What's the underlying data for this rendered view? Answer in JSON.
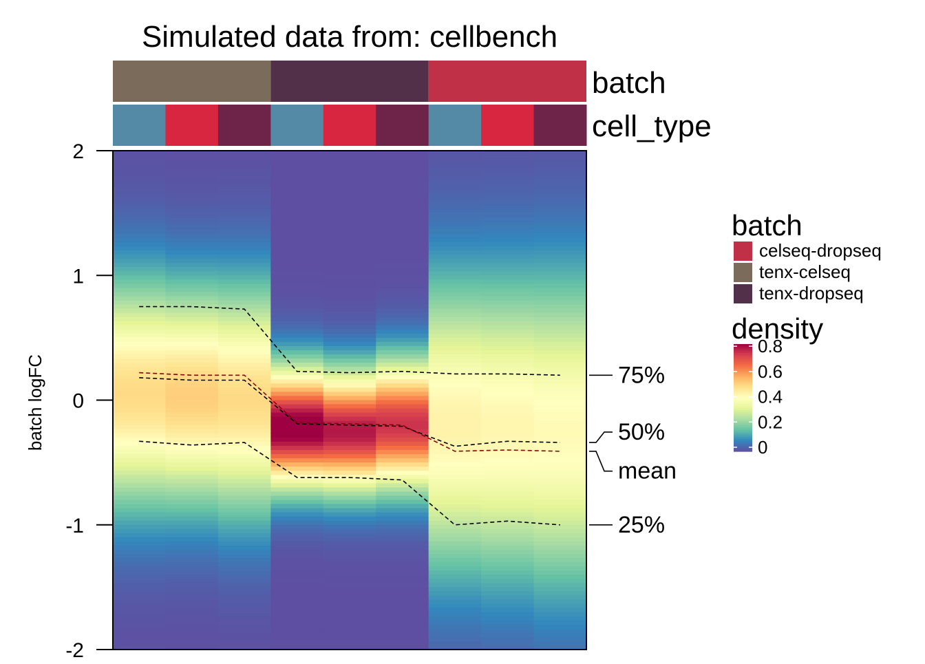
{
  "chart_data": {
    "type": "heatmap",
    "title": "Simulated data from: cellbench",
    "ylabel": "batch logFC",
    "ylim": [
      -2,
      2
    ],
    "yticks": [
      2,
      1,
      0,
      -1,
      -2
    ],
    "annotation_rows": [
      "batch",
      "cell_type"
    ],
    "batch_colors": {
      "celseq-dropseq": "#c03046",
      "tenx-celseq": "#7a6b5b",
      "tenx-dropseq": "#52304a"
    },
    "cell_type_colors": [
      "#558aa6",
      "#d92640",
      "#6e2449"
    ],
    "columns": [
      {
        "batch": "tenx-celseq",
        "cell_type": 0
      },
      {
        "batch": "tenx-celseq",
        "cell_type": 1
      },
      {
        "batch": "tenx-celseq",
        "cell_type": 2
      },
      {
        "batch": "tenx-dropseq",
        "cell_type": 0
      },
      {
        "batch": "tenx-dropseq",
        "cell_type": 1
      },
      {
        "batch": "tenx-dropseq",
        "cell_type": 2
      },
      {
        "batch": "celseq-dropseq",
        "cell_type": 0
      },
      {
        "batch": "celseq-dropseq",
        "cell_type": 1
      },
      {
        "batch": "celseq-dropseq",
        "cell_type": 2
      }
    ],
    "density_profile": [
      {
        "center": 0.05,
        "spread": 0.62,
        "peak": 0.52
      },
      {
        "center": 0.03,
        "spread": 0.6,
        "peak": 0.54
      },
      {
        "center": 0.0,
        "spread": 0.62,
        "peak": 0.52
      },
      {
        "center": -0.22,
        "spread": 0.33,
        "peak": 0.88
      },
      {
        "center": -0.25,
        "spread": 0.33,
        "peak": 0.82
      },
      {
        "center": -0.2,
        "spread": 0.35,
        "peak": 0.78
      },
      {
        "center": -0.2,
        "spread": 0.8,
        "peak": 0.46
      },
      {
        "center": -0.22,
        "spread": 0.82,
        "peak": 0.45
      },
      {
        "center": -0.25,
        "spread": 0.85,
        "peak": 0.44
      }
    ],
    "quantile_lines": [
      {
        "name": "75%",
        "label_y": 0.2,
        "values": [
          0.75,
          0.75,
          0.73,
          0.23,
          0.22,
          0.23,
          0.21,
          0.21,
          0.2
        ],
        "color": "#000000"
      },
      {
        "name": "50%",
        "label_y": -0.3,
        "values": [
          0.18,
          0.16,
          0.16,
          -0.19,
          -0.2,
          -0.21,
          -0.37,
          -0.33,
          -0.34
        ],
        "color": "#000000"
      },
      {
        "name": "mean",
        "label_y": -0.47,
        "values": [
          0.22,
          0.2,
          0.2,
          -0.18,
          -0.19,
          -0.2,
          -0.41,
          -0.4,
          -0.41
        ],
        "color": "#8b0000"
      },
      {
        "name": "25%",
        "label_y": -1.0,
        "values": [
          -0.33,
          -0.36,
          -0.34,
          -0.62,
          -0.62,
          -0.64,
          -1.0,
          -0.97,
          -1.0
        ],
        "color": "#000000"
      }
    ],
    "legend": {
      "position": "right",
      "batch_title": "batch",
      "batch_items": [
        "celseq-dropseq",
        "tenx-celseq",
        "tenx-dropseq"
      ],
      "density_title": "density",
      "density_ticks": [
        0.8,
        0.6,
        0.4,
        0.2,
        0
      ],
      "density_range": [
        0,
        0.85
      ],
      "density_colors": [
        "#5e4fa2",
        "#3288bd",
        "#66c2a5",
        "#abdda4",
        "#e6f598",
        "#ffffbf",
        "#fee08b",
        "#fdae61",
        "#f46d43",
        "#d53e4f",
        "#9e0142"
      ]
    }
  }
}
